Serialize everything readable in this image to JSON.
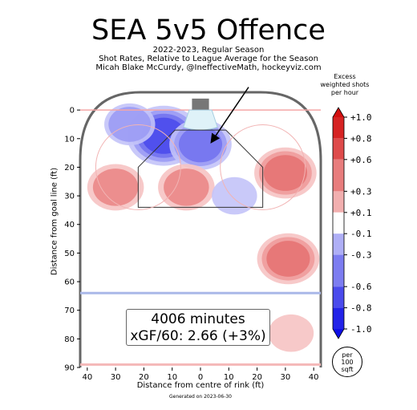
{
  "header": {
    "title": "SEA 5v5 Offence",
    "season": "2022-2023, Regular Season",
    "description": "Shot Rates, Relative to League Average for the Season",
    "credit": "Micah Blake McCurdy, @IneffectiveMath, hockeyviz.com"
  },
  "summary": {
    "minutes": "4006 minutes",
    "xgf": "xGF/60: 2.66 (+3%)"
  },
  "per_unit": {
    "line1": "per",
    "line2": "100",
    "line3": "sqft"
  },
  "footer": {
    "generated": "Generated on 2023-06-30"
  },
  "chart_data": {
    "type": "heatmap",
    "xlabel": "Distance from centre of rink (ft)",
    "ylabel": "Distance from goal line (ft)",
    "xlim": [
      -42.5,
      42.5
    ],
    "ylim": [
      -2,
      90
    ],
    "x_ticks": [
      "40",
      "30",
      "20",
      "10",
      "0",
      "10",
      "20",
      "30",
      "40"
    ],
    "x_tick_values": [
      -40,
      -30,
      -20,
      -10,
      0,
      10,
      20,
      30,
      40
    ],
    "y_ticks": [
      "0",
      "10",
      "20",
      "30",
      "40",
      "50",
      "60",
      "70",
      "80",
      "90"
    ],
    "y_tick_values": [
      0,
      10,
      20,
      30,
      40,
      50,
      60,
      70,
      80,
      90
    ],
    "colorbar": {
      "title_lines": [
        "Excess",
        "weighted shots",
        "per hour"
      ],
      "labels": [
        "+1.0",
        "+0.8",
        "+0.6",
        "+0.3",
        "+0.1",
        "-0.1",
        "-0.3",
        "-0.6",
        "-0.8",
        "-1.0"
      ],
      "values": [
        1.0,
        0.8,
        0.6,
        0.3,
        0.1,
        -0.1,
        -0.3,
        -0.6,
        -0.8,
        -1.0
      ]
    },
    "hotspots": [
      {
        "x": -13,
        "y": 9,
        "value": -0.7
      },
      {
        "x": 0,
        "y": 12,
        "value": -0.5
      },
      {
        "x": -25,
        "y": 5,
        "value": -0.3
      },
      {
        "x": 30,
        "y": 22,
        "value": 0.5
      },
      {
        "x": 31,
        "y": 52,
        "value": 0.5
      },
      {
        "x": -5,
        "y": 27,
        "value": 0.4
      },
      {
        "x": -30,
        "y": 27,
        "value": 0.4
      },
      {
        "x": 12,
        "y": 30,
        "value": -0.2
      },
      {
        "x": 32,
        "y": 78,
        "value": 0.2
      }
    ],
    "annotation_arrow": {
      "from": [
        17,
        -8
      ],
      "to": [
        4,
        11
      ]
    }
  }
}
